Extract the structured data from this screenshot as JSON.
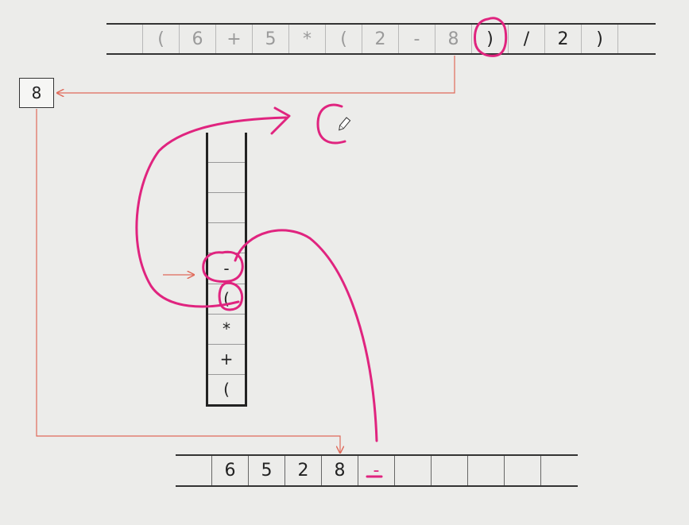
{
  "input_tape": {
    "cells": [
      {
        "text": "",
        "state": "dim"
      },
      {
        "text": "(",
        "state": "dim"
      },
      {
        "text": "6",
        "state": "dim"
      },
      {
        "text": "+",
        "state": "dim"
      },
      {
        "text": "5",
        "state": "dim"
      },
      {
        "text": "*",
        "state": "dim"
      },
      {
        "text": "(",
        "state": "dim"
      },
      {
        "text": "2",
        "state": "dim"
      },
      {
        "text": "-",
        "state": "dim"
      },
      {
        "text": "8",
        "state": "dim"
      },
      {
        "text": ")",
        "state": "bright"
      },
      {
        "text": "/",
        "state": "bright"
      },
      {
        "text": "2",
        "state": "bright"
      },
      {
        "text": ")",
        "state": "bright"
      },
      {
        "text": "",
        "state": "bright"
      }
    ]
  },
  "current_token": "8",
  "stack": {
    "cells": [
      "",
      "",
      "",
      "",
      "-",
      "(",
      "*",
      "+",
      "("
    ]
  },
  "output_tape": {
    "cells": [
      "",
      "6",
      "5",
      "2",
      "8",
      "-",
      "",
      "",
      "",
      "",
      ""
    ]
  },
  "colors": {
    "annotation": "#e0247f",
    "arrow": "#e06a5a",
    "background": "#ececea"
  },
  "icons": {
    "pen_cursor": "pen-cursor-icon"
  }
}
